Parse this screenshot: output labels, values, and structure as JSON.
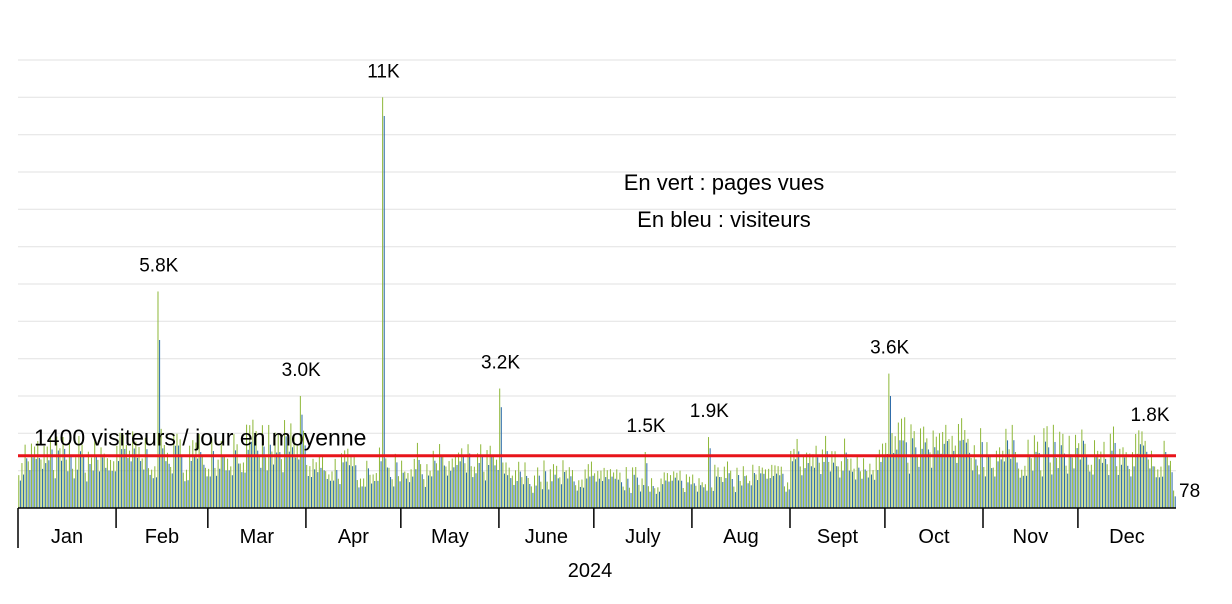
{
  "chart_data": {
    "type": "bar",
    "xlabel": "2024",
    "months": [
      "Jan",
      "Feb",
      "Mar",
      "Apr",
      "May",
      "June",
      "July",
      "Aug",
      "Sept",
      "Oct",
      "Nov",
      "Dec"
    ],
    "legend": [
      "En vert : pages vues",
      "En bleu : visiteurs"
    ],
    "average_line": {
      "value": 1400,
      "label": "1400 visiteurs / jour en moyenne",
      "color": "#e8141a"
    },
    "ylim": [
      0,
      12000
    ],
    "grid": true,
    "series": [
      {
        "name": "pages vues",
        "color": "#8fb83a"
      },
      {
        "name": "visiteurs",
        "color": "#2b6aa8"
      }
    ],
    "monthly_profile": {
      "Jan": {
        "pages_vues": 1600,
        "visiteurs": 1350
      },
      "Feb": {
        "pages_vues": 1700,
        "visiteurs": 1450
      },
      "Mar": {
        "pages_vues": 1900,
        "visiteurs": 1550
      },
      "Apr": {
        "pages_vues": 1300,
        "visiteurs": 1100
      },
      "May": {
        "pages_vues": 1400,
        "visiteurs": 1200
      },
      "June": {
        "pages_vues": 1050,
        "visiteurs": 850
      },
      "July": {
        "pages_vues": 900,
        "visiteurs": 750
      },
      "Aug": {
        "pages_vues": 1000,
        "visiteurs": 850
      },
      "Sept": {
        "pages_vues": 1600,
        "visiteurs": 1350
      },
      "Oct": {
        "pages_vues": 1950,
        "visiteurs": 1650
      },
      "Nov": {
        "pages_vues": 1800,
        "visiteurs": 1550
      },
      "Dec": {
        "pages_vues": 1750,
        "visiteurs": 1500
      }
    },
    "peaks": [
      {
        "label": "5.8K",
        "month": "Feb",
        "day": 14,
        "pages_vues": 5800,
        "visiteurs": 4500
      },
      {
        "label": "3.0K",
        "month": "Mar",
        "day": 30,
        "pages_vues": 3000,
        "visiteurs": 2500
      },
      {
        "label": "11K",
        "month": "Apr",
        "day": 25,
        "pages_vues": 11000,
        "visiteurs": 10500
      },
      {
        "label": "3.2K",
        "month": "June",
        "day": 1,
        "pages_vues": 3200,
        "visiteurs": 2700
      },
      {
        "label": "1.5K",
        "month": "July",
        "day": 17,
        "pages_vues": 1500,
        "visiteurs": 1200
      },
      {
        "label": "1.9K",
        "month": "Aug",
        "day": 6,
        "pages_vues": 1900,
        "visiteurs": 1600
      },
      {
        "label": "3.6K",
        "month": "Oct",
        "day": 2,
        "pages_vues": 3600,
        "visiteurs": 3000
      },
      {
        "label": "1.8K",
        "month": "Dec",
        "day": 28,
        "pages_vues": 1800,
        "visiteurs": 1500
      }
    ],
    "last_value": {
      "label": "78",
      "value": 78
    }
  }
}
